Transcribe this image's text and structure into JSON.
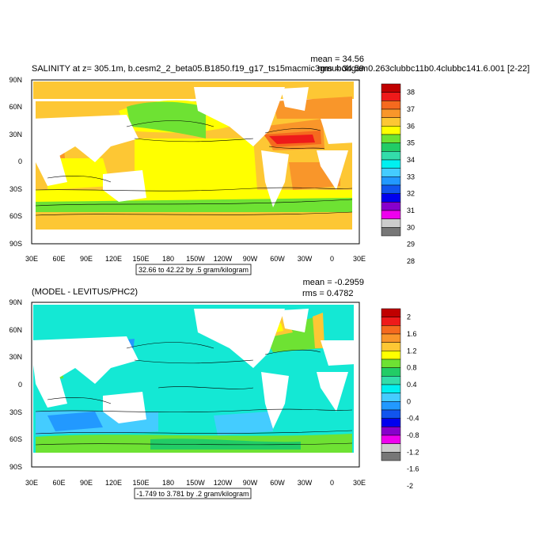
{
  "top_panel": {
    "title": "SALINITY at z= 305.1m, b.cesm2_2_beta05.B1850.f19_g17_ts15macmic3gmubobgam0.263clubbc11b0.4clubbc141.6.001 [2-22]",
    "mean_label": "mean = 34.56",
    "rms_label": "rms = 34.59",
    "info_box": "32.66 to 42.22 by .5 gram/kilogram",
    "colorbar": {
      "labels": [
        "38",
        "37",
        "36",
        "35",
        "34",
        "33",
        "32",
        "31",
        "30",
        "29",
        "28"
      ],
      "colors": [
        "#c00000",
        "#ee1a1a",
        "#f56a1e",
        "#f9962a",
        "#fdc734",
        "#ffff00",
        "#6ee233",
        "#22cc66",
        "#33ddaa",
        "#00f0f0",
        "#44ccff",
        "#2299ff",
        "#1155ee",
        "#0000ee",
        "#8800cc",
        "#ee00ee",
        "#cccccc",
        "#777777"
      ]
    }
  },
  "bottom_panel": {
    "title": "(MODEL - LEVITUS/PHC2)",
    "mean_label": "mean = -0.2959",
    "rms_label": "rms = 0.4782",
    "info_box": "-1.749 to 3.781 by .2 gram/kilogram",
    "colorbar": {
      "labels": [
        "2",
        "1.6",
        "1.2",
        "0.8",
        "0.4",
        "0",
        "-0.4",
        "-0.8",
        "-1.2",
        "-1.6",
        "-2"
      ],
      "colors": [
        "#c00000",
        "#ee1a1a",
        "#f56a1e",
        "#f9962a",
        "#fdc734",
        "#ffff00",
        "#6ee233",
        "#22cc66",
        "#33ddaa",
        "#00f0f0",
        "#44ccff",
        "#2299ff",
        "#1155ee",
        "#0000ee",
        "#8800cc",
        "#ee00ee",
        "#cccccc",
        "#777777"
      ]
    }
  },
  "axes": {
    "lat_labels": [
      "90N",
      "60N",
      "30N",
      "0",
      "30S",
      "60S",
      "90S"
    ],
    "lon_labels": [
      "30E",
      "60E",
      "90E",
      "120E",
      "150E",
      "180",
      "150W",
      "120W",
      "90W",
      "60W",
      "30W",
      "0",
      "30E"
    ]
  }
}
